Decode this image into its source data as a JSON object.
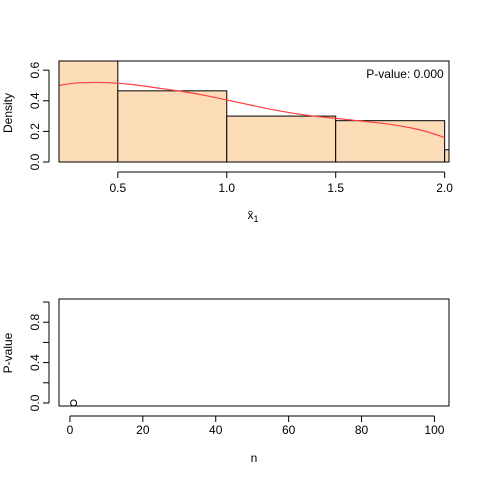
{
  "chart_data": [
    {
      "type": "bar",
      "subtype": "histogram",
      "xlabel": "x̄",
      "xlabel_subscript": "1",
      "ylabel": "Density",
      "xlim": [
        0.23,
        2.02
      ],
      "ylim": [
        0,
        0.66
      ],
      "xticks": [
        0.5,
        1.0,
        1.5,
        2.0
      ],
      "xtick_labels": [
        "0.5",
        "1.0",
        "1.5",
        "2.0"
      ],
      "yticks": [
        0.0,
        0.2,
        0.4,
        0.6
      ],
      "ytick_labels": [
        "0.0",
        "0.2",
        "0.4",
        "0.6"
      ],
      "bar_color": "#fddcb8",
      "bins": [
        {
          "x0": 0.2,
          "x1": 0.5,
          "value": 0.66
        },
        {
          "x0": 0.5,
          "x1": 1.0,
          "value": 0.465
        },
        {
          "x0": 1.0,
          "x1": 1.5,
          "value": 0.3
        },
        {
          "x0": 1.5,
          "x1": 2.0,
          "value": 0.27
        },
        {
          "x0": 2.0,
          "x1": 2.5,
          "value": 0.08
        }
      ],
      "density_curve": {
        "color": "#ff4040",
        "x": [
          0.23,
          0.3,
          0.4,
          0.5,
          0.6,
          0.7,
          0.8,
          0.9,
          1.0,
          1.1,
          1.2,
          1.3,
          1.4,
          1.5,
          1.6,
          1.7,
          1.8,
          1.9,
          2.0
        ],
        "y": [
          0.5,
          0.515,
          0.52,
          0.515,
          0.5,
          0.48,
          0.46,
          0.435,
          0.405,
          0.375,
          0.345,
          0.32,
          0.3,
          0.285,
          0.27,
          0.255,
          0.235,
          0.205,
          0.16
        ]
      },
      "annotation": "P-value: 0.000"
    },
    {
      "type": "scatter",
      "xlabel": "n",
      "ylabel": "P-value",
      "xlim": [
        -3,
        104
      ],
      "ylim": [
        -0.03,
        1.03
      ],
      "xticks": [
        0,
        20,
        40,
        60,
        80,
        100
      ],
      "xtick_labels": [
        "0",
        "20",
        "40",
        "60",
        "80",
        "100"
      ],
      "yticks": [
        0.0,
        0.4,
        0.8
      ],
      "ytick_labels": [
        "0.0",
        "0.4",
        "0.8"
      ],
      "yticks_minor": [
        0.2,
        0.6,
        1.0
      ],
      "points": [
        {
          "x": 1,
          "y": 0.0
        }
      ]
    }
  ]
}
